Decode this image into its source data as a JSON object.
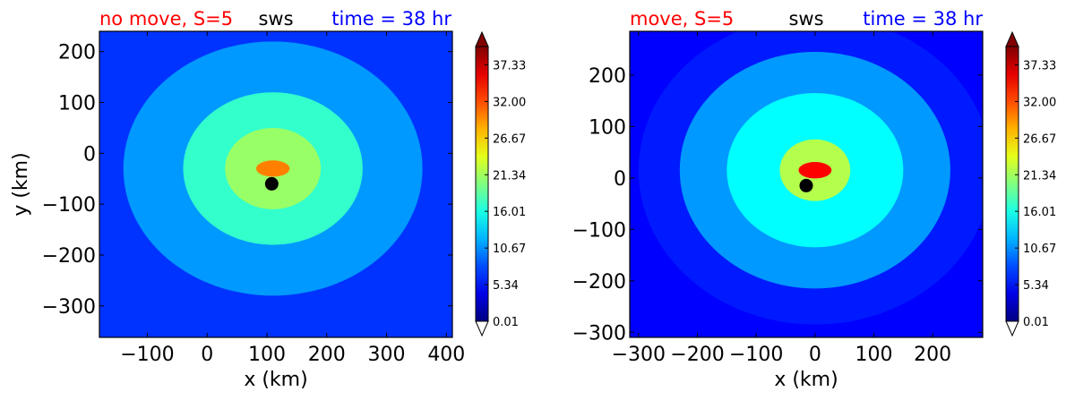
{
  "chart_data": [
    {
      "type": "heatmap",
      "title_left": "no move, S=5",
      "title_center": "sws",
      "title_right": "time = 38 hr",
      "title_colors": {
        "left": "#ff0000",
        "center": "#000000",
        "right": "#0000ff"
      },
      "xlabel": "x (km)",
      "ylabel": "y (km)",
      "xlim": [
        -180,
        410
      ],
      "ylim": [
        -362,
        240
      ],
      "xticks": [
        -100,
        0,
        100,
        200,
        300,
        400
      ],
      "yticks": [
        200,
        100,
        0,
        -100,
        -200,
        -300
      ],
      "xtick_labels": [
        "−100",
        "0",
        "100",
        "200",
        "300",
        "400"
      ],
      "ytick_labels": [
        "200",
        "100",
        "0",
        "−100",
        "−200",
        "−300"
      ],
      "colorbar": {
        "min": 0.01,
        "max": 40,
        "ticks": [
          37.33,
          32.0,
          26.67,
          21.34,
          16.01,
          10.67,
          5.34,
          0.01
        ],
        "tick_labels": [
          "37.33",
          "32.00",
          "26.67",
          "21.34",
          "16.01",
          "10.67",
          "5.34",
          "0.01"
        ],
        "extend": "both",
        "colormap": "jet"
      },
      "center_marker": {
        "x": 108,
        "y": -60
      },
      "field_features": {
        "background_value": 7,
        "core": {
          "x": 110,
          "y": -30,
          "value": 30
        },
        "rings": [
          {
            "radius_km": 80,
            "value": 21
          },
          {
            "radius_km": 150,
            "value": 17
          },
          {
            "radius_km": 250,
            "value": 11
          },
          {
            "radius_km": 330,
            "value": 7
          }
        ]
      }
    },
    {
      "type": "heatmap",
      "title_left": "move, S=5",
      "title_center": "sws",
      "title_right": "time = 38 hr",
      "title_colors": {
        "left": "#ff0000",
        "center": "#000000",
        "right": "#0000ff"
      },
      "xlabel": "x (km)",
      "ylabel": "",
      "xlim": [
        -315,
        285
      ],
      "ylim": [
        -310,
        285
      ],
      "xticks": [
        -300,
        -200,
        -100,
        0,
        100,
        200
      ],
      "yticks": [
        200,
        100,
        0,
        -100,
        -200,
        -300
      ],
      "xtick_labels": [
        "−300",
        "−200",
        "−100",
        "0",
        "100",
        "200"
      ],
      "ytick_labels": [
        "200",
        "100",
        "0",
        "−100",
        "−200",
        "−300"
      ],
      "colorbar": {
        "min": 0.01,
        "max": 40,
        "ticks": [
          37.33,
          32.0,
          26.67,
          21.34,
          16.01,
          10.67,
          5.34,
          0.01
        ],
        "tick_labels": [
          "37.33",
          "32.00",
          "26.67",
          "21.34",
          "16.01",
          "10.67",
          "5.34",
          "0.01"
        ],
        "extend": "both",
        "colormap": "jet"
      },
      "center_marker": {
        "x": -15,
        "y": -15
      },
      "field_features": {
        "background_value": 5,
        "core": {
          "x": 0,
          "y": 15,
          "value": 35
        },
        "rings": [
          {
            "radius_km": 60,
            "value": 22
          },
          {
            "radius_km": 150,
            "value": 15
          },
          {
            "radius_km": 230,
            "value": 11
          },
          {
            "radius_km": 300,
            "value": 6
          }
        ]
      }
    }
  ]
}
